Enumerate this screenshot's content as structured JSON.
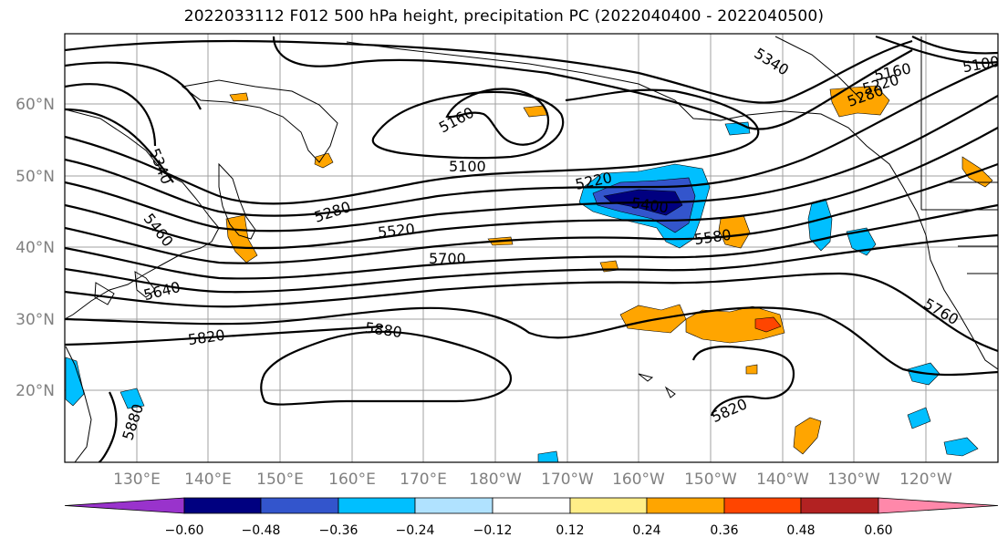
{
  "title": "2022033112 F012 500 hPa height, precipitation PC (2022040400 - 2022040500)",
  "map": {
    "lat_labels": [
      "60°N",
      "50°N",
      "40°N",
      "30°N",
      "20°N"
    ],
    "lon_labels": [
      "130°E",
      "140°E",
      "150°E",
      "160°E",
      "170°E",
      "180°W",
      "170°W",
      "160°W",
      "150°W",
      "140°W",
      "130°W",
      "120°W"
    ],
    "contour_labels": [
      "5340",
      "5160",
      "5100",
      "5220",
      "5280",
      "5400",
      "5460",
      "5520",
      "5580",
      "5640",
      "5700",
      "5760",
      "5820",
      "5880",
      "5880",
      "5820",
      "5340",
      "5100",
      "5160",
      "5220",
      "5280"
    ],
    "grid": true,
    "coastlines": true
  },
  "colorbar": {
    "labels": [
      "−0.60",
      "−0.48",
      "−0.36",
      "−0.24",
      "−0.12",
      "0.12",
      "0.24",
      "0.36",
      "0.48",
      "0.60"
    ],
    "colors": [
      "#9933cc",
      "#000080",
      "#3355cc",
      "#00bfff",
      "#b0e2ff",
      "#ffffff",
      "#ffee88",
      "#ffa500",
      "#ff4500",
      "#b22222",
      "#ff88aa"
    ],
    "extend": "both"
  }
}
